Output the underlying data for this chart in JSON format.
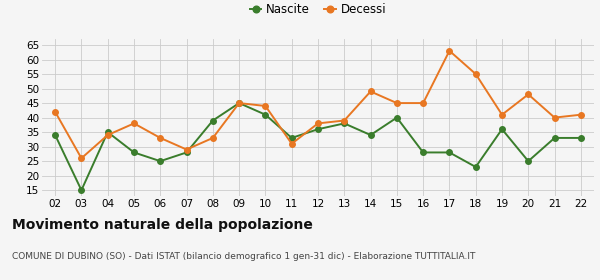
{
  "years": [
    "02",
    "03",
    "04",
    "05",
    "06",
    "07",
    "08",
    "09",
    "10",
    "11",
    "12",
    "13",
    "14",
    "15",
    "16",
    "17",
    "18",
    "19",
    "20",
    "21",
    "22"
  ],
  "nascite": [
    34,
    15,
    35,
    28,
    25,
    28,
    39,
    45,
    41,
    33,
    36,
    38,
    34,
    40,
    28,
    28,
    23,
    36,
    25,
    33,
    33
  ],
  "decessi": [
    42,
    26,
    34,
    38,
    33,
    29,
    33,
    45,
    44,
    31,
    38,
    39,
    49,
    45,
    45,
    63,
    55,
    41,
    48,
    40,
    41
  ],
  "nascite_color": "#3a7d2c",
  "decessi_color": "#e87722",
  "background_color": "#f5f5f5",
  "grid_color": "#cccccc",
  "title": "Movimento naturale della popolazione",
  "subtitle": "COMUNE DI DUBINO (SO) - Dati ISTAT (bilancio demografico 1 gen-31 dic) - Elaborazione TUTTITALIA.IT",
  "legend_nascite": "Nascite",
  "legend_decessi": "Decessi",
  "ylim": [
    13,
    67
  ],
  "yticks": [
    15,
    20,
    25,
    30,
    35,
    40,
    45,
    50,
    55,
    60,
    65
  ],
  "marker_size": 4,
  "linewidth": 1.4,
  "tick_fontsize": 7.5,
  "legend_fontsize": 8.5,
  "title_fontsize": 10,
  "subtitle_fontsize": 6.5
}
